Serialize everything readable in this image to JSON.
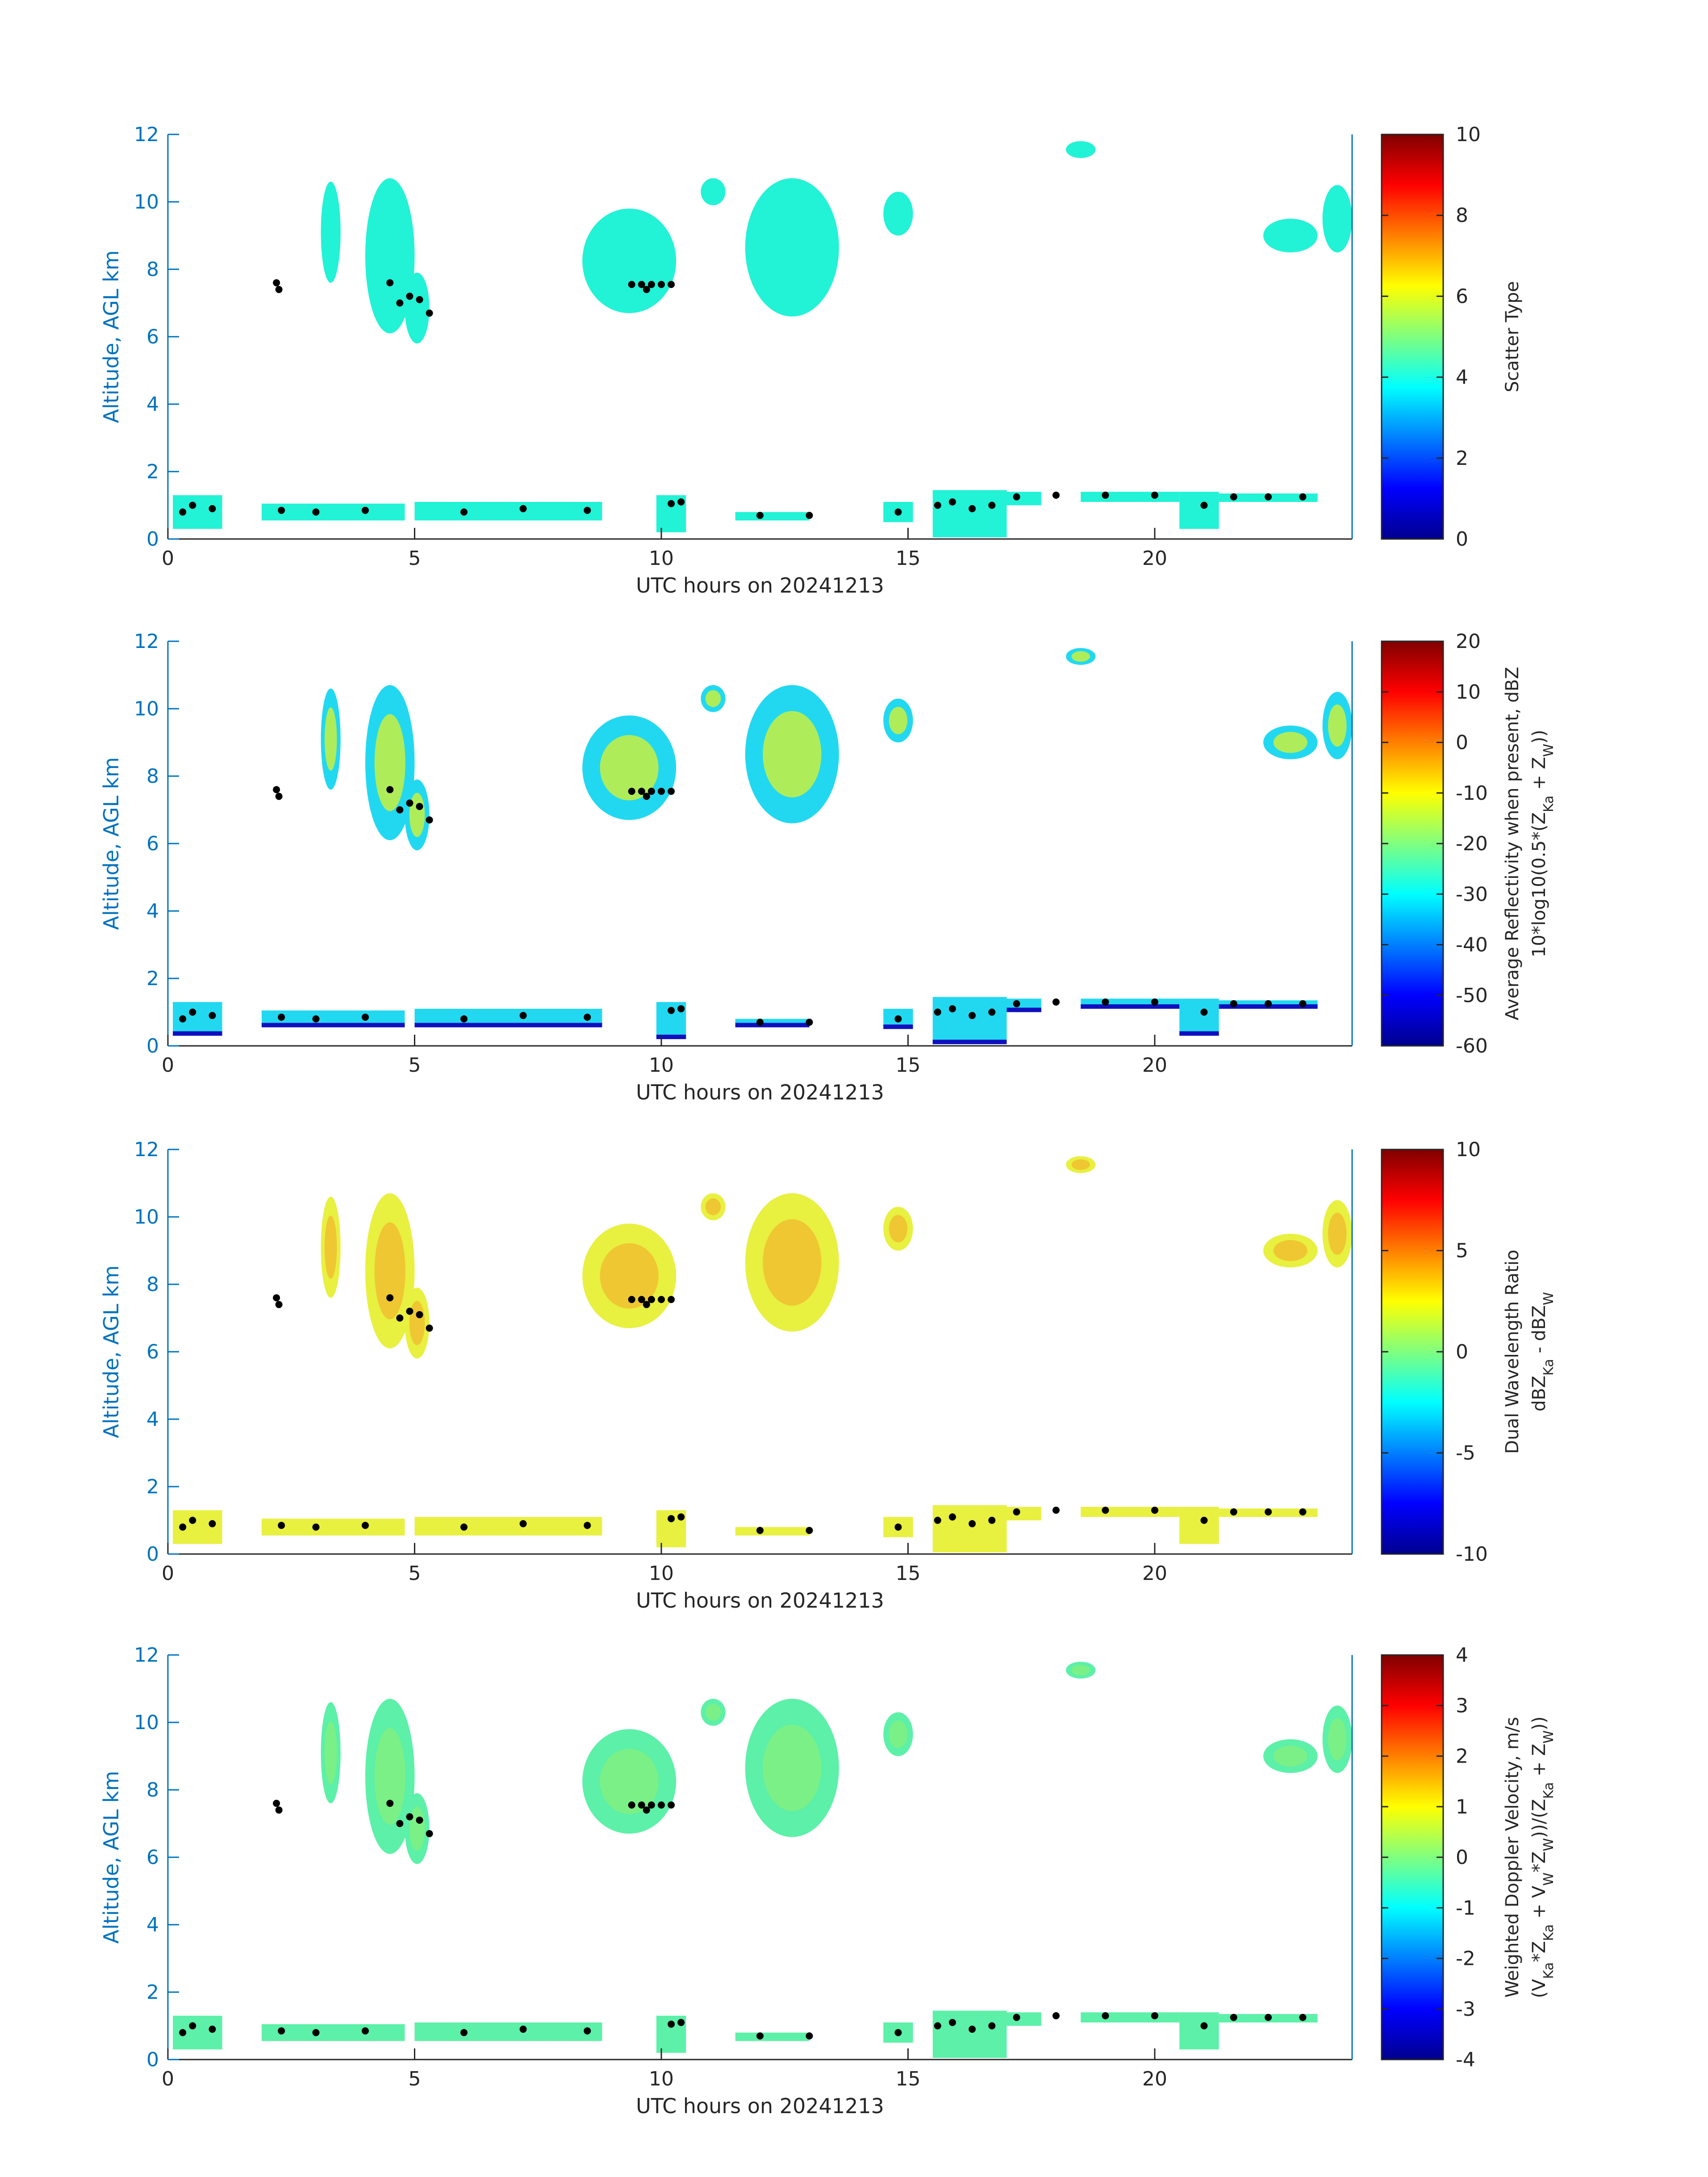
{
  "colors": {
    "axis_y": "#0072BD",
    "text": "#262626",
    "base_marker": "#000000"
  },
  "chart_data": [
    {
      "type": "heatmap",
      "title": "",
      "xlabel": "UTC hours on 20241213",
      "ylabel": "Altitude, AGL km",
      "xlim": [
        0,
        24
      ],
      "ylim": [
        0,
        12
      ],
      "xticks": [
        "0",
        "5",
        "10",
        "15",
        "20"
      ],
      "yticks": [
        "0",
        "2",
        "4",
        "6",
        "8",
        "10",
        "12"
      ],
      "colorbar": {
        "label": [
          "Scatter Type"
        ],
        "range": [
          0,
          10
        ],
        "ticks": [
          "0",
          "2",
          "4",
          "6",
          "8",
          "10"
        ]
      },
      "fill_color": "#22f2d6",
      "inner_color": "#22f2d6"
    },
    {
      "type": "heatmap",
      "title": "",
      "xlabel": "UTC hours on 20241213",
      "ylabel": "Altitude, AGL km",
      "xlim": [
        0,
        24
      ],
      "ylim": [
        0,
        12
      ],
      "xticks": [
        "0",
        "5",
        "10",
        "15",
        "20"
      ],
      "yticks": [
        "0",
        "2",
        "4",
        "6",
        "8",
        "10",
        "12"
      ],
      "colorbar": {
        "label": [
          "Average Reflectivity when present, dBZ",
          "10*log10(0.5*(Z_Ka + Z_W))"
        ],
        "range": [
          -60,
          20
        ],
        "ticks": [
          "-60",
          "-50",
          "-40",
          "-30",
          "-20",
          "-10",
          "0",
          "10",
          "20"
        ]
      },
      "fill_color": "#22d8f0",
      "inner_color": "#c8f040"
    },
    {
      "type": "heatmap",
      "title": "",
      "xlabel": "UTC hours on 20241213",
      "ylabel": "Altitude, AGL km",
      "xlim": [
        0,
        24
      ],
      "ylim": [
        0,
        12
      ],
      "xticks": [
        "0",
        "5",
        "10",
        "15",
        "20"
      ],
      "yticks": [
        "0",
        "2",
        "4",
        "6",
        "8",
        "10",
        "12"
      ],
      "colorbar": {
        "label": [
          "Dual Wavelength Ratio",
          "dBZ_Ka - dBZ_W"
        ],
        "range": [
          -10,
          10
        ],
        "ticks": [
          "-10",
          "-5",
          "0",
          "5",
          "10"
        ]
      },
      "fill_color": "#e8f040",
      "inner_color": "#f0c030"
    },
    {
      "type": "heatmap",
      "title": "",
      "xlabel": "UTC hours on 20241213",
      "ylabel": "Altitude, AGL km",
      "xlim": [
        0,
        24
      ],
      "ylim": [
        0,
        12
      ],
      "xticks": [
        "0",
        "5",
        "10",
        "15",
        "20"
      ],
      "yticks": [
        "0",
        "2",
        "4",
        "6",
        "8",
        "10",
        "12"
      ],
      "colorbar": {
        "label": [
          "Weighted Doppler Velocity, m/s",
          "(V_Ka*Z_Ka + V_W*Z_W))/(Z_Ka + Z_W))"
        ],
        "range": [
          -4,
          4
        ],
        "ticks": [
          "-4",
          "-3",
          "-2",
          "-1",
          "0",
          "1",
          "2",
          "3",
          "4"
        ]
      },
      "fill_color": "#5cf0a8",
      "inner_color": "#80f080"
    }
  ],
  "echo_regions_upper": [
    [
      3.1,
      3.5,
      7.6,
      10.6
    ],
    [
      4.0,
      5.0,
      6.1,
      10.7
    ],
    [
      4.8,
      5.3,
      5.8,
      7.9
    ],
    [
      8.4,
      10.3,
      6.7,
      9.8
    ],
    [
      10.8,
      11.3,
      9.9,
      10.7
    ],
    [
      11.7,
      13.6,
      6.6,
      10.7
    ],
    [
      14.5,
      15.1,
      9.0,
      10.3
    ],
    [
      18.2,
      18.8,
      11.3,
      11.8
    ],
    [
      22.2,
      23.3,
      8.5,
      9.5
    ],
    [
      23.4,
      24.0,
      8.5,
      10.5
    ]
  ],
  "echo_regions_lower": [
    [
      0.1,
      1.1,
      0.3,
      1.3
    ],
    [
      1.9,
      4.8,
      0.55,
      1.05
    ],
    [
      5.0,
      8.8,
      0.55,
      1.1
    ],
    [
      9.9,
      10.5,
      0.2,
      1.3
    ],
    [
      11.5,
      13.0,
      0.55,
      0.8
    ],
    [
      14.5,
      15.1,
      0.5,
      1.1
    ],
    [
      15.5,
      17.0,
      0.05,
      1.45
    ],
    [
      17.0,
      17.7,
      1.0,
      1.4
    ],
    [
      18.5,
      20.5,
      1.1,
      1.4
    ],
    [
      20.5,
      21.3,
      0.3,
      1.4
    ],
    [
      21.3,
      23.3,
      1.1,
      1.35
    ]
  ],
  "cloud_base_points": [
    [
      2.2,
      7.6
    ],
    [
      2.25,
      7.4
    ],
    [
      4.5,
      7.6
    ],
    [
      4.7,
      7.0
    ],
    [
      4.9,
      7.2
    ],
    [
      5.1,
      7.1
    ],
    [
      5.3,
      6.7
    ],
    [
      9.4,
      7.55
    ],
    [
      9.6,
      7.55
    ],
    [
      9.8,
      7.55
    ],
    [
      10.0,
      7.55
    ],
    [
      10.2,
      7.55
    ],
    [
      9.7,
      7.4
    ],
    [
      0.3,
      0.8
    ],
    [
      0.5,
      1.0
    ],
    [
      0.9,
      0.9
    ],
    [
      2.3,
      0.85
    ],
    [
      3.0,
      0.8
    ],
    [
      4.0,
      0.85
    ],
    [
      6.0,
      0.8
    ],
    [
      7.2,
      0.9
    ],
    [
      8.5,
      0.85
    ],
    [
      10.2,
      1.05
    ],
    [
      10.4,
      1.1
    ],
    [
      12.0,
      0.7
    ],
    [
      13.0,
      0.7
    ],
    [
      14.8,
      0.8
    ],
    [
      15.6,
      1.0
    ],
    [
      15.9,
      1.1
    ],
    [
      16.3,
      0.9
    ],
    [
      16.7,
      1.0
    ],
    [
      17.2,
      1.25
    ],
    [
      18.0,
      1.3
    ],
    [
      19.0,
      1.3
    ],
    [
      20.0,
      1.3
    ],
    [
      21.0,
      1.0
    ],
    [
      21.6,
      1.25
    ],
    [
      22.3,
      1.25
    ],
    [
      23.0,
      1.25
    ]
  ]
}
